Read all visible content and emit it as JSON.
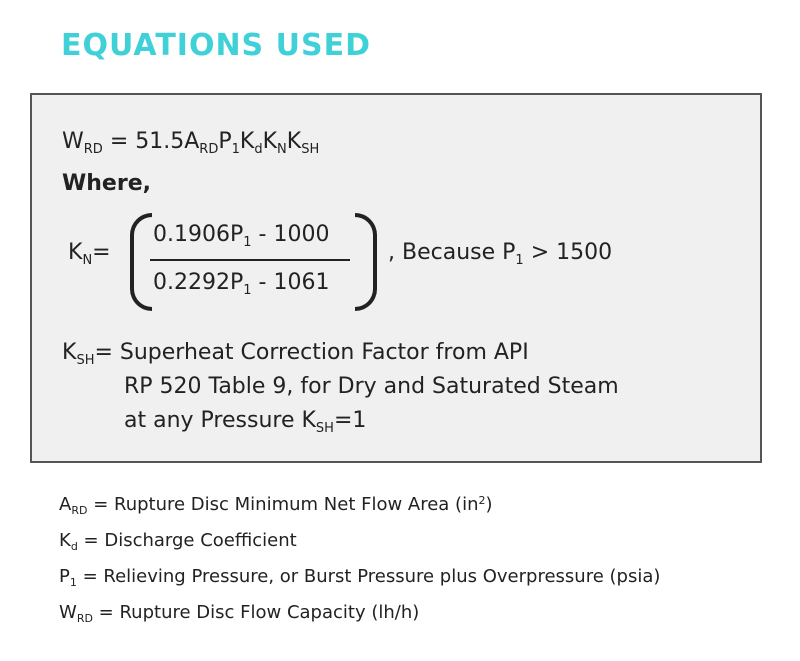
{
  "title": "EQUATIONS USED",
  "equation": {
    "lhs_main": "W",
    "lhs_sub": "RD",
    "eq_a": "= 51.5A",
    "a_sub": "RD",
    "p": "P",
    "p_sub": "1",
    "k1": "K",
    "k1_sub": "d",
    "k2": "K",
    "k2_sub": "N",
    "k3": "K",
    "k3_sub": "SH"
  },
  "where_label": "Where,",
  "kn": {
    "k": "K",
    "k_sub": "N",
    "eq": "=",
    "num_a": "0.1906P",
    "num_sub": "1",
    "num_b": "- 1000",
    "den_a": "0.2292P",
    "den_sub": "1",
    "den_b": "- 1061",
    "cond_a": ", Because P",
    "cond_sub": "1",
    "cond_b": "> 1500"
  },
  "ksh": {
    "k": "K",
    "k_sub": "SH",
    "line1": "= Superheat Correction Factor from API",
    "line2": "RP 520 Table 9, for Dry and Saturated Steam",
    "line3_a": "at any Pressure K",
    "line3_sub": "SH",
    "line3_b": "=1"
  },
  "legend": [
    {
      "sym": "A",
      "sub": "RD",
      "text": "= Rupture Disc Minimum Net Flow Area (in",
      "sup": "2",
      "end": ")"
    },
    {
      "sym": "K",
      "sub": "d",
      "text": "= Discharge Coefficient"
    },
    {
      "sym": "P",
      "sub": "1",
      "text": "= Relieving Pressure, or Burst Pressure plus Overpressure (psia)"
    },
    {
      "sym": "W",
      "sub": "RD",
      "text": "= Rupture Disc Flow Capacity (lh/h)"
    }
  ],
  "colors": {
    "title": "#3fd0d8",
    "box_bg": "#f0f0f0",
    "box_border": "#555555",
    "text": "#222222"
  }
}
